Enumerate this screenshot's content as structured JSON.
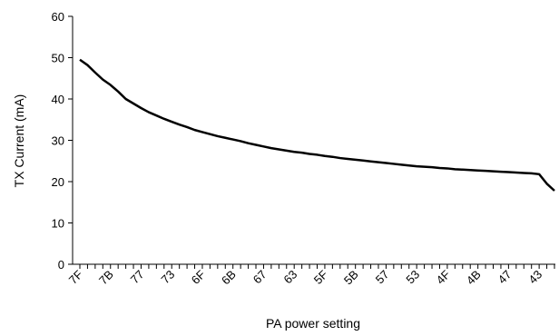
{
  "chart_data": {
    "type": "line",
    "title": "",
    "xlabel": "PA power setting",
    "ylabel": "TX Current (mA)",
    "ylim": [
      0,
      60
    ],
    "y_ticks": [
      0,
      10,
      20,
      30,
      40,
      50,
      60
    ],
    "grid": false,
    "legend": "none",
    "line_color": "#000000",
    "x_tick_labels": [
      "7F",
      "7B",
      "77",
      "73",
      "6F",
      "6B",
      "67",
      "63",
      "5F",
      "5B",
      "57",
      "53",
      "4F",
      "4B",
      "47",
      "43"
    ],
    "x": [
      "7F",
      "7E",
      "7D",
      "7C",
      "7B",
      "7A",
      "79",
      "78",
      "77",
      "76",
      "75",
      "74",
      "73",
      "72",
      "71",
      "70",
      "6F",
      "6E",
      "6D",
      "6C",
      "6B",
      "6A",
      "69",
      "68",
      "67",
      "66",
      "65",
      "64",
      "63",
      "62",
      "61",
      "60",
      "5F",
      "5E",
      "5D",
      "5C",
      "5B",
      "5A",
      "59",
      "58",
      "57",
      "56",
      "55",
      "54",
      "53",
      "52",
      "51",
      "50",
      "4F",
      "4E",
      "4D",
      "4C",
      "4B",
      "4A",
      "49",
      "48",
      "47",
      "46",
      "45",
      "44",
      "43",
      "42",
      "41"
    ],
    "series": [
      {
        "values": [
          49.5,
          48.2,
          46.4,
          44.7,
          43.4,
          41.8,
          40.0,
          38.9,
          37.8,
          36.8,
          36.0,
          35.2,
          34.5,
          33.8,
          33.2,
          32.5,
          32.0,
          31.5,
          31.0,
          30.6,
          30.2,
          29.8,
          29.3,
          28.9,
          28.5,
          28.1,
          27.8,
          27.5,
          27.2,
          27.0,
          26.7,
          26.5,
          26.2,
          26.0,
          25.7,
          25.5,
          25.3,
          25.1,
          24.9,
          24.7,
          24.5,
          24.3,
          24.1,
          23.9,
          23.7,
          23.6,
          23.5,
          23.3,
          23.2,
          23.0,
          22.9,
          22.8,
          22.7,
          22.6,
          22.5,
          22.4,
          22.3,
          22.2,
          22.1,
          22.0,
          21.8,
          19.5,
          17.8
        ]
      }
    ]
  }
}
